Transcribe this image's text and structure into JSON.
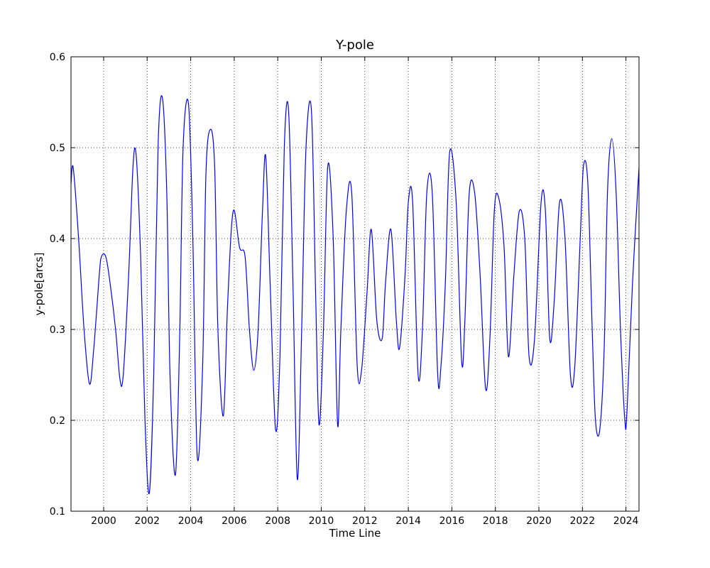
{
  "chart_data": {
    "type": "line",
    "title": "Y-pole",
    "xlabel": "Time Line",
    "ylabel": "y-pole[arcs]",
    "xlim": [
      1998.5,
      2024.6
    ],
    "ylim": [
      0.1,
      0.6
    ],
    "grid": true,
    "line_color": "#0000ff",
    "x_ticks": [
      2000,
      2002,
      2004,
      2006,
      2008,
      2010,
      2012,
      2014,
      2016,
      2018,
      2020,
      2022,
      2024
    ],
    "x_tick_labels": [
      "2000",
      "2002",
      "2004",
      "2006",
      "2008",
      "2010",
      "2012",
      "2014",
      "2016",
      "2018",
      "2020",
      "2022",
      "2024"
    ],
    "y_ticks": [
      0.1,
      0.2,
      0.3,
      0.4,
      0.5,
      0.6
    ],
    "y_tick_labels": [
      "0.1",
      "0.2",
      "0.3",
      "0.4",
      "0.5",
      "0.6"
    ],
    "series": [
      {
        "x": [
          1998.5,
          1998.6,
          1998.85,
          1999.1,
          1999.35,
          1999.55,
          1999.8,
          1999.9,
          2000.1,
          2000.3,
          2000.55,
          2000.75,
          2000.9,
          2001.15,
          2001.35,
          2001.5,
          2001.7,
          2001.9,
          2002.1,
          2002.3,
          2002.5,
          2002.7,
          2002.9,
          2003.05,
          2003.3,
          2003.5,
          2003.65,
          2003.9,
          2004.1,
          2004.3,
          2004.55,
          2004.7,
          2004.9,
          2005.1,
          2005.25,
          2005.5,
          2005.7,
          2005.95,
          2006.25,
          2006.5,
          2006.7,
          2006.9,
          2007.1,
          2007.3,
          2007.45,
          2007.65,
          2007.9,
          2008.1,
          2008.3,
          2008.5,
          2008.7,
          2008.9,
          2009.1,
          2009.3,
          2009.55,
          2009.75,
          2009.9,
          2010.1,
          2010.3,
          2010.55,
          2010.75,
          2010.9,
          2011.15,
          2011.4,
          2011.65,
          2011.85,
          2012.1,
          2012.3,
          2012.55,
          2012.8,
          2012.95,
          2013.2,
          2013.45,
          2013.6,
          2013.85,
          2014.0,
          2014.2,
          2014.45,
          2014.65,
          2014.85,
          2015.1,
          2015.35,
          2015.5,
          2015.7,
          2015.9,
          2016.2,
          2016.45,
          2016.6,
          2016.8,
          2017.05,
          2017.3,
          2017.55,
          2017.75,
          2017.95,
          2018.15,
          2018.4,
          2018.6,
          2018.85,
          2019.1,
          2019.35,
          2019.55,
          2019.8,
          2020.1,
          2020.3,
          2020.5,
          2020.7,
          2020.95,
          2021.2,
          2021.45,
          2021.65,
          2021.9,
          2022.05,
          2022.25,
          2022.45,
          2022.6,
          2022.8,
          2023.0,
          2023.15,
          2023.35,
          2023.55,
          2023.75,
          2023.95,
          2024.05,
          2024.3,
          2024.6
        ],
        "y": [
          0.46,
          0.478,
          0.4,
          0.3,
          0.24,
          0.28,
          0.36,
          0.38,
          0.38,
          0.35,
          0.3,
          0.245,
          0.25,
          0.36,
          0.48,
          0.49,
          0.38,
          0.2,
          0.12,
          0.25,
          0.5,
          0.555,
          0.45,
          0.25,
          0.14,
          0.3,
          0.5,
          0.548,
          0.4,
          0.16,
          0.26,
          0.47,
          0.52,
          0.48,
          0.3,
          0.205,
          0.33,
          0.43,
          0.39,
          0.38,
          0.3,
          0.255,
          0.3,
          0.43,
          0.49,
          0.35,
          0.19,
          0.27,
          0.5,
          0.54,
          0.35,
          0.135,
          0.3,
          0.5,
          0.54,
          0.33,
          0.195,
          0.3,
          0.48,
          0.4,
          0.195,
          0.3,
          0.43,
          0.45,
          0.26,
          0.255,
          0.34,
          0.41,
          0.31,
          0.29,
          0.35,
          0.41,
          0.31,
          0.28,
          0.36,
          0.44,
          0.44,
          0.25,
          0.3,
          0.45,
          0.45,
          0.25,
          0.26,
          0.35,
          0.495,
          0.44,
          0.265,
          0.31,
          0.45,
          0.45,
          0.36,
          0.235,
          0.29,
          0.43,
          0.445,
          0.39,
          0.27,
          0.36,
          0.43,
          0.4,
          0.27,
          0.29,
          0.44,
          0.43,
          0.29,
          0.33,
          0.44,
          0.4,
          0.25,
          0.26,
          0.4,
          0.48,
          0.46,
          0.3,
          0.2,
          0.19,
          0.28,
          0.45,
          0.51,
          0.45,
          0.3,
          0.2,
          0.21,
          0.35,
          0.478
        ]
      }
    ]
  }
}
